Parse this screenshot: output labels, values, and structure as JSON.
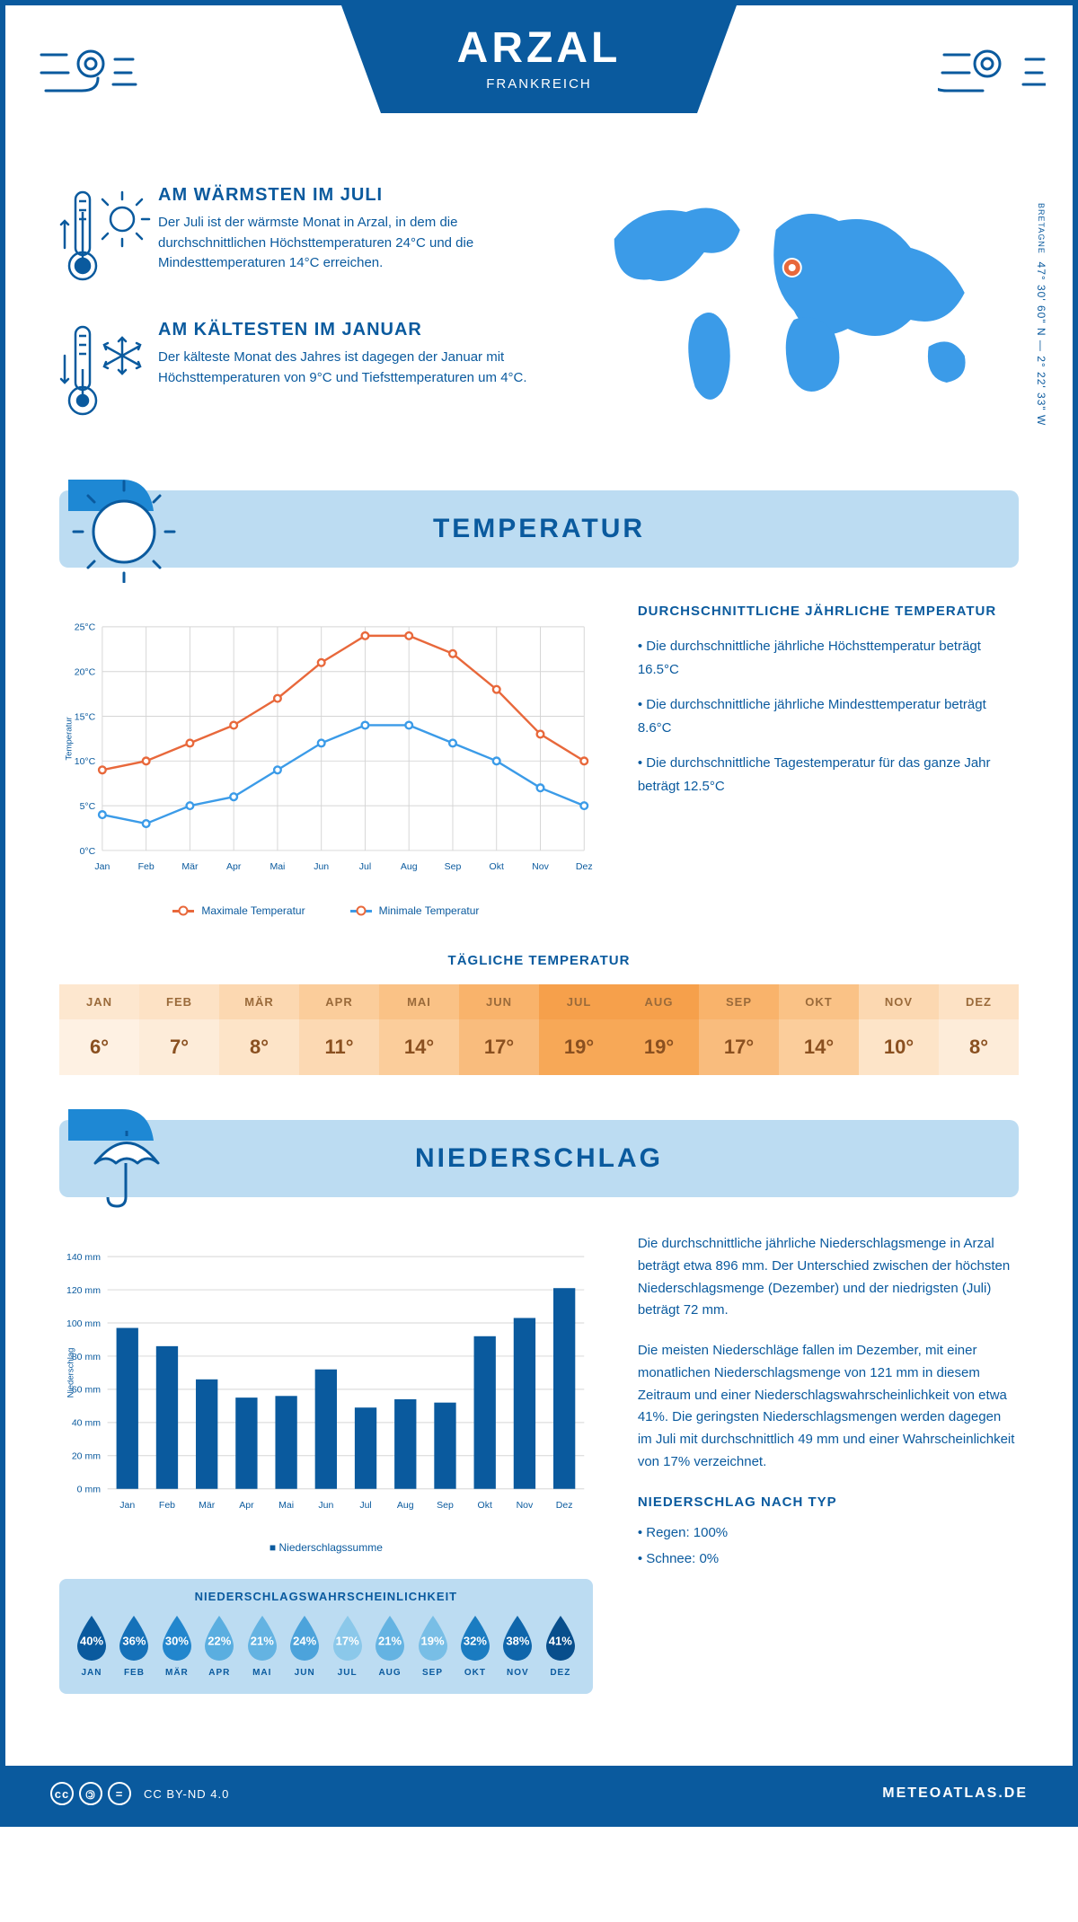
{
  "header": {
    "city": "ARZAL",
    "country": "FRANKREICH"
  },
  "coords": "47° 30' 60\" N — 2° 22' 33\" W",
  "region": "BRETAGNE",
  "colors": {
    "primary": "#0a5a9e",
    "accent": "#1e88d4",
    "light": "#bcdcf2",
    "max_line": "#e8683b",
    "min_line": "#3b9be8",
    "grid": "#d5d5d5"
  },
  "facts": {
    "warm": {
      "title": "AM WÄRMSTEN IM JULI",
      "text": "Der Juli ist der wärmste Monat in Arzal, in dem die durchschnittlichen Höchsttemperaturen 24°C und die Mindesttemperaturen 14°C erreichen."
    },
    "cold": {
      "title": "AM KÄLTESTEN IM JANUAR",
      "text": "Der kälteste Monat des Jahres ist dagegen der Januar mit Höchsttemperaturen von 9°C und Tiefsttemperaturen um 4°C."
    }
  },
  "sections": {
    "temp": "TEMPERATUR",
    "precip": "NIEDERSCHLAG"
  },
  "temp_chart": {
    "type": "line",
    "ylabel": "Temperatur",
    "months": [
      "Jan",
      "Feb",
      "Mär",
      "Apr",
      "Mai",
      "Jun",
      "Jul",
      "Aug",
      "Sep",
      "Okt",
      "Nov",
      "Dez"
    ],
    "max": [
      9,
      10,
      12,
      14,
      17,
      21,
      24,
      24,
      22,
      18,
      13,
      10
    ],
    "min": [
      4,
      3,
      5,
      6,
      9,
      12,
      14,
      14,
      12,
      10,
      7,
      5
    ],
    "ylim": [
      0,
      25
    ],
    "ytick_step": 5,
    "legend_max": "Maximale Temperatur",
    "legend_min": "Minimale Temperatur"
  },
  "temp_text": {
    "title": "DURCHSCHNITTLICHE JÄHRLICHE TEMPERATUR",
    "b1": "• Die durchschnittliche jährliche Höchsttemperatur beträgt 16.5°C",
    "b2": "• Die durchschnittliche jährliche Mindesttemperatur beträgt 8.6°C",
    "b3": "• Die durchschnittliche Tagestemperatur für das ganze Jahr beträgt 12.5°C"
  },
  "daily_temp": {
    "title": "TÄGLICHE TEMPERATUR",
    "months": [
      "JAN",
      "FEB",
      "MÄR",
      "APR",
      "MAI",
      "JUN",
      "JUL",
      "AUG",
      "SEP",
      "OKT",
      "NOV",
      "DEZ"
    ],
    "values": [
      "6°",
      "7°",
      "8°",
      "11°",
      "14°",
      "17°",
      "19°",
      "19°",
      "17°",
      "14°",
      "10°",
      "8°"
    ],
    "header_colors": [
      "#fde7cf",
      "#fde2c5",
      "#fcd8b1",
      "#fbcd9b",
      "#fac286",
      "#f9b36b",
      "#f6a04b",
      "#f6a04b",
      "#f9b36b",
      "#fac286",
      "#fcd8b1",
      "#fde2c5"
    ],
    "value_colors": [
      "#fef1e3",
      "#fdecd9",
      "#fde4c8",
      "#fcd9b3",
      "#fbcd9b",
      "#f9bc7d",
      "#f7a857",
      "#f7a857",
      "#f9bc7d",
      "#fbcd9b",
      "#fde4c8",
      "#fdecd9"
    ],
    "text_color": "#9a6a3a",
    "text_color_dark": "#8a5020"
  },
  "precip_chart": {
    "type": "bar",
    "ylabel": "Niederschlag",
    "months": [
      "Jan",
      "Feb",
      "Mär",
      "Apr",
      "Mai",
      "Jun",
      "Jul",
      "Aug",
      "Sep",
      "Okt",
      "Nov",
      "Dez"
    ],
    "values": [
      97,
      86,
      66,
      55,
      56,
      72,
      49,
      54,
      52,
      92,
      103,
      121
    ],
    "ylim": [
      0,
      140
    ],
    "ytick_step": 20,
    "bar_color": "#0a5a9e",
    "legend": "Niederschlagssumme"
  },
  "precip_text": {
    "p1": "Die durchschnittliche jährliche Niederschlagsmenge in Arzal beträgt etwa 896 mm. Der Unterschied zwischen der höchsten Niederschlagsmenge (Dezember) und der niedrigsten (Juli) beträgt 72 mm.",
    "p2": "Die meisten Niederschläge fallen im Dezember, mit einer monatlichen Niederschlagsmenge von 121 mm in diesem Zeitraum und einer Niederschlagswahrscheinlichkeit von etwa 41%. Die geringsten Niederschlagsmengen werden dagegen im Juli mit durchschnittlich 49 mm und einer Wahrscheinlichkeit von 17% verzeichnet.",
    "type_title": "NIEDERSCHLAG NACH TYP",
    "type1": "• Regen: 100%",
    "type2": "• Schnee: 0%"
  },
  "prob": {
    "title": "NIEDERSCHLAGSWAHRSCHEINLICHKEIT",
    "months": [
      "JAN",
      "FEB",
      "MÄR",
      "APR",
      "MAI",
      "JUN",
      "JUL",
      "AUG",
      "SEP",
      "OKT",
      "NOV",
      "DEZ"
    ],
    "values": [
      40,
      36,
      30,
      22,
      21,
      24,
      17,
      21,
      19,
      32,
      38,
      41
    ],
    "color_scale": [
      "#0a5a9e",
      "#1571b9",
      "#2286cd",
      "#5aaee0",
      "#64b3e2",
      "#4ca3db",
      "#8bc8ea",
      "#64b3e2",
      "#78bee6",
      "#1b7cc1",
      "#0f66ab",
      "#084e8c"
    ]
  },
  "footer": {
    "license": "CC BY-ND 4.0",
    "site": "METEOATLAS.DE"
  }
}
